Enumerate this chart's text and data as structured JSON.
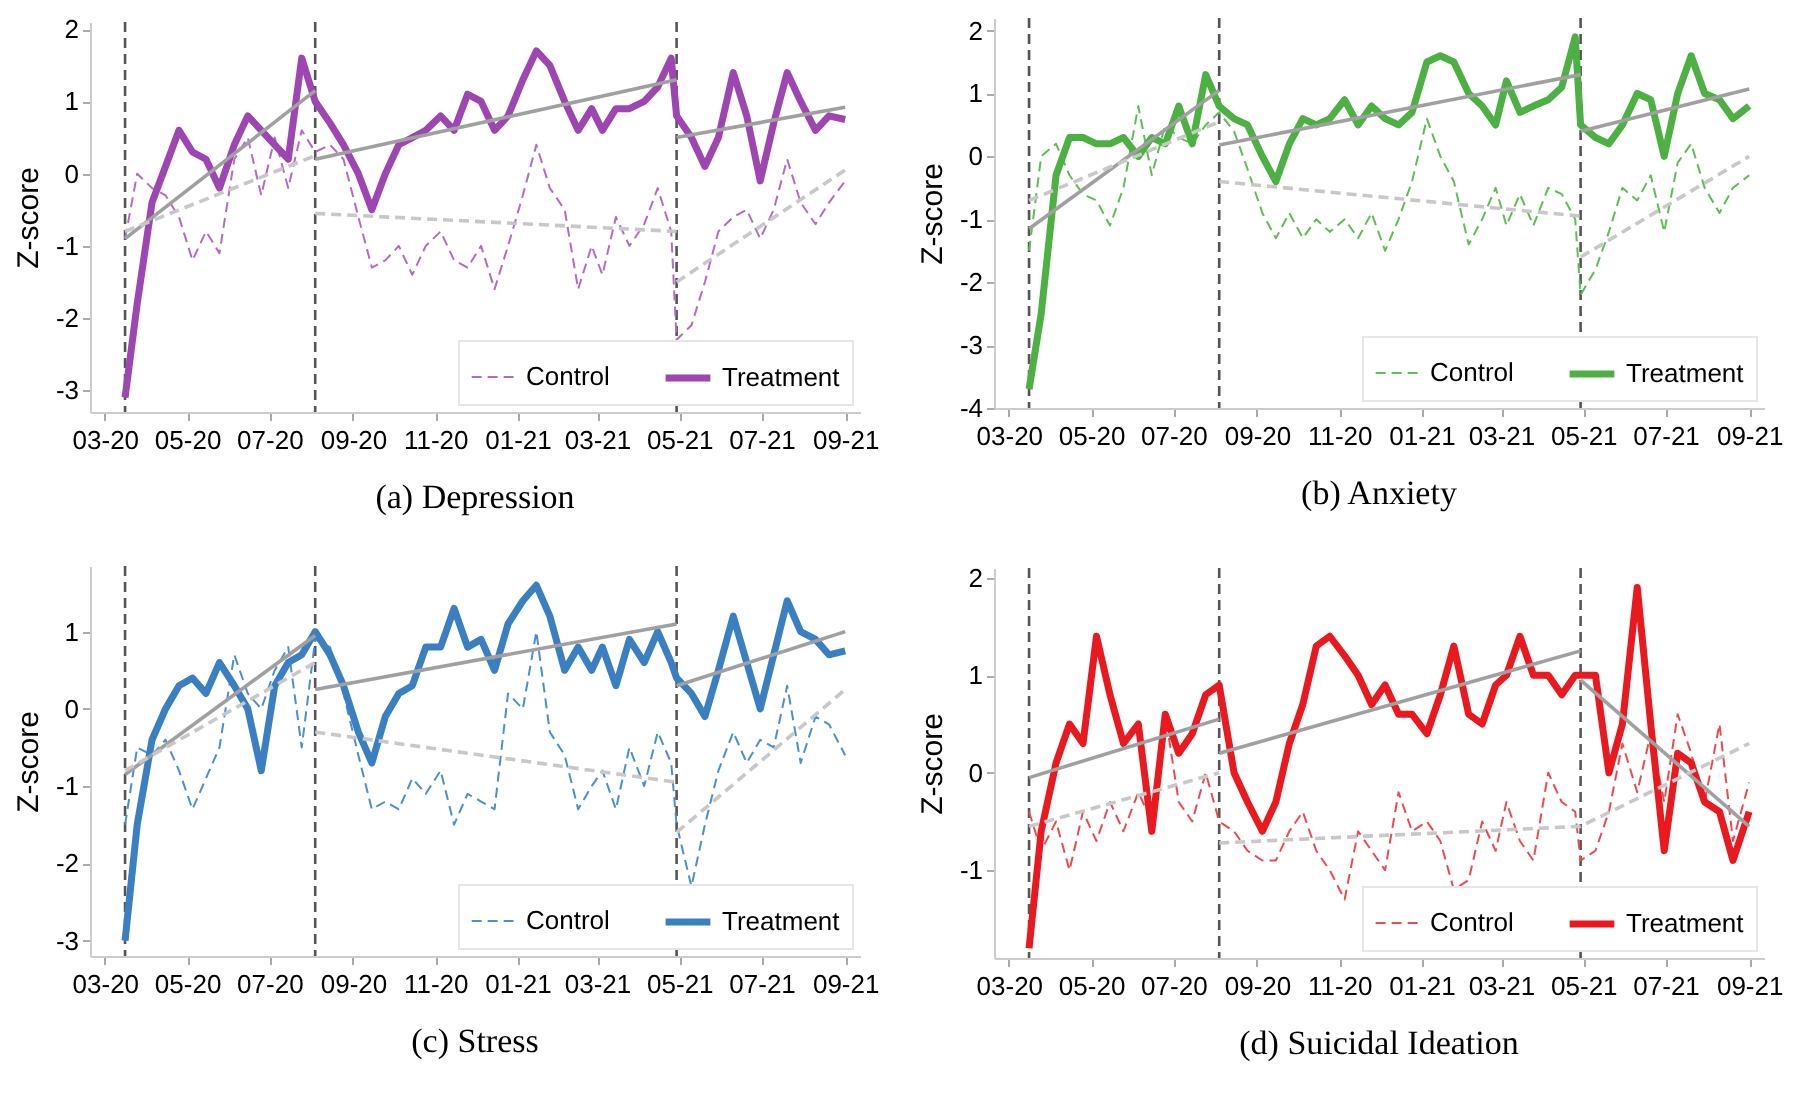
{
  "chart_data": [
    {
      "type": "line",
      "title": "(a) Depression",
      "ylabel": "Z-score",
      "legend": "bottom right",
      "x": [
        "2020-03-16",
        "2020-03-25",
        "2020-04-05",
        "2020-04-15",
        "2020-04-25",
        "2020-05-05",
        "2020-05-15",
        "2020-05-25",
        "2020-06-05",
        "2020-06-15",
        "2020-06-25",
        "2020-07-05",
        "2020-07-15",
        "2020-07-25",
        "2020-08-04",
        "2020-08-15",
        "2020-08-25",
        "2020-09-05",
        "2020-09-15",
        "2020-09-25",
        "2020-10-05",
        "2020-10-15",
        "2020-10-25",
        "2020-11-05",
        "2020-11-15",
        "2020-11-25",
        "2020-12-05",
        "2020-12-15",
        "2020-12-25",
        "2021-01-05",
        "2021-01-15",
        "2021-01-25",
        "2021-02-05",
        "2021-02-15",
        "2021-02-25",
        "2021-03-05",
        "2021-03-15",
        "2021-03-25",
        "2021-04-05",
        "2021-04-15",
        "2021-04-25",
        "2021-04-29",
        "2021-05-10",
        "2021-05-20",
        "2021-05-30",
        "2021-06-10",
        "2021-06-20",
        "2021-06-30",
        "2021-07-10",
        "2021-07-20",
        "2021-07-30",
        "2021-08-10",
        "2021-08-20",
        "2021-09-01"
      ],
      "xlim": [
        "2020-02-19",
        "2021-09-12"
      ],
      "xticks": [
        {
          "value": "2020-03-01",
          "label": "03-20"
        },
        {
          "value": "2020-05-01",
          "label": "05-20"
        },
        {
          "value": "2020-07-01",
          "label": "07-20"
        },
        {
          "value": "2020-09-01",
          "label": "09-20"
        },
        {
          "value": "2020-11-01",
          "label": "11-20"
        },
        {
          "value": "2021-01-01",
          "label": "01-21"
        },
        {
          "value": "2021-03-01",
          "label": "03-21"
        },
        {
          "value": "2021-05-01",
          "label": "05-21"
        },
        {
          "value": "2021-07-01",
          "label": "07-21"
        },
        {
          "value": "2021-09-01",
          "label": "09-21"
        }
      ],
      "ylim": [
        -3.3,
        2.1
      ],
      "yticks": [
        -3,
        -2,
        -1,
        0,
        1,
        2
      ],
      "ref_lines": [
        {
          "axis": "x",
          "value": "2020-03-16",
          "color": "#555555",
          "line_style": "dashed"
        },
        {
          "axis": "x",
          "value": "2020-08-04",
          "color": "#555555",
          "line_style": "dashed"
        },
        {
          "axis": "x",
          "value": "2021-04-29",
          "color": "#555555",
          "line_style": "dashed"
        }
      ],
      "series": [
        {
          "name": "Control",
          "color": "#b36cc4",
          "line_style": "dashed",
          "values": [
            -0.9,
            0.0,
            -0.2,
            -0.3,
            -0.6,
            -1.2,
            -0.8,
            -1.1,
            0.2,
            0.5,
            -0.3,
            0.5,
            -0.2,
            0.6,
            0.3,
            0.4,
            0.2,
            -0.6,
            -1.3,
            -1.2,
            -1.0,
            -1.4,
            -1.0,
            -0.8,
            -1.2,
            -1.3,
            -1.0,
            -1.6,
            -1.0,
            -0.3,
            0.4,
            -0.2,
            -0.5,
            -1.6,
            -1.0,
            -1.4,
            -0.6,
            -1.0,
            -0.7,
            -0.2,
            -0.8,
            -2.3,
            -2.1,
            -1.5,
            -0.8,
            -0.6,
            -0.5,
            -0.9,
            -0.5,
            0.2,
            -0.4,
            -0.7,
            -0.4,
            -0.1
          ]
        },
        {
          "name": "Treatment",
          "color": "#9d45b0",
          "line_style": "solid",
          "values": [
            -3.1,
            -1.8,
            -0.4,
            0.1,
            0.6,
            0.3,
            0.2,
            -0.2,
            0.4,
            0.8,
            0.6,
            0.4,
            0.2,
            1.6,
            1.0,
            0.7,
            0.4,
            0.0,
            -0.5,
            0.0,
            0.4,
            0.5,
            0.6,
            0.8,
            0.6,
            1.1,
            1.0,
            0.6,
            0.8,
            1.3,
            1.7,
            1.5,
            1.0,
            0.6,
            0.9,
            0.6,
            0.9,
            0.9,
            1.0,
            1.2,
            1.6,
            0.8,
            0.5,
            0.1,
            0.5,
            1.4,
            0.8,
            -0.1,
            0.7,
            1.4,
            1.0,
            0.6,
            0.8,
            0.75
          ]
        },
        {
          "type": "line",
          "color": "#a0a0a0",
          "line_style": "solid",
          "x": [
            "2020-03-16",
            "2020-08-04"
          ],
          "values": [
            -0.9,
            1.15
          ]
        },
        {
          "type": "line",
          "color": "#a0a0a0",
          "line_style": "solid",
          "x": [
            "2020-08-04",
            "2021-04-29"
          ],
          "values": [
            0.2,
            1.3
          ]
        },
        {
          "type": "line",
          "color": "#a0a0a0",
          "line_style": "solid",
          "x": [
            "2021-04-29",
            "2021-09-01"
          ],
          "values": [
            0.5,
            0.92
          ]
        },
        {
          "type": "line",
          "color": "#c8c8c8",
          "line_style": "dashed",
          "x": [
            "2020-03-16",
            "2020-08-04"
          ],
          "values": [
            -0.8,
            0.25
          ]
        },
        {
          "type": "line",
          "color": "#c8c8c8",
          "line_style": "dashed",
          "x": [
            "2020-08-04",
            "2021-04-29"
          ],
          "values": [
            -0.55,
            -0.8
          ]
        },
        {
          "type": "line",
          "color": "#c8c8c8",
          "line_style": "dashed",
          "x": [
            "2021-04-29",
            "2021-09-01"
          ],
          "values": [
            -1.5,
            0.05
          ]
        }
      ]
    },
    {
      "type": "line",
      "title": "(b) Anxiety",
      "ylabel": "Z-score",
      "legend": "bottom right",
      "x": [
        "2020-03-16",
        "2020-03-25",
        "2020-04-05",
        "2020-04-15",
        "2020-04-25",
        "2020-05-05",
        "2020-05-15",
        "2020-05-25",
        "2020-06-05",
        "2020-06-15",
        "2020-06-25",
        "2020-07-05",
        "2020-07-15",
        "2020-07-25",
        "2020-08-04",
        "2020-08-15",
        "2020-08-25",
        "2020-09-05",
        "2020-09-15",
        "2020-09-25",
        "2020-10-05",
        "2020-10-15",
        "2020-10-25",
        "2020-11-05",
        "2020-11-15",
        "2020-11-25",
        "2020-12-05",
        "2020-12-15",
        "2020-12-25",
        "2021-01-05",
        "2021-01-15",
        "2021-01-25",
        "2021-02-05",
        "2021-02-15",
        "2021-02-25",
        "2021-03-05",
        "2021-03-15",
        "2021-03-25",
        "2021-04-05",
        "2021-04-15",
        "2021-04-25",
        "2021-04-29",
        "2021-05-10",
        "2021-05-20",
        "2021-05-30",
        "2021-06-10",
        "2021-06-20",
        "2021-06-30",
        "2021-07-10",
        "2021-07-20",
        "2021-07-30",
        "2021-08-10",
        "2021-08-20",
        "2021-09-01"
      ],
      "xlim": [
        "2020-02-19",
        "2021-09-12"
      ],
      "xticks": [
        {
          "value": "2020-03-01",
          "label": "03-20"
        },
        {
          "value": "2020-05-01",
          "label": "05-20"
        },
        {
          "value": "2020-07-01",
          "label": "07-20"
        },
        {
          "value": "2020-09-01",
          "label": "09-20"
        },
        {
          "value": "2020-11-01",
          "label": "11-20"
        },
        {
          "value": "2021-01-01",
          "label": "01-21"
        },
        {
          "value": "2021-03-01",
          "label": "03-21"
        },
        {
          "value": "2021-05-01",
          "label": "05-21"
        },
        {
          "value": "2021-07-01",
          "label": "07-21"
        },
        {
          "value": "2021-09-01",
          "label": "09-21"
        }
      ],
      "ylim": [
        -4,
        2.2
      ],
      "yticks": [
        -4,
        -3,
        -2,
        -1,
        0,
        1,
        2
      ],
      "ref_lines": [
        {
          "axis": "x",
          "value": "2020-03-16",
          "color": "#555555",
          "line_style": "dashed"
        },
        {
          "axis": "x",
          "value": "2020-08-04",
          "color": "#555555",
          "line_style": "dashed"
        },
        {
          "axis": "x",
          "value": "2021-04-29",
          "color": "#555555",
          "line_style": "dashed"
        }
      ],
      "series": [
        {
          "name": "Control",
          "color": "#5cbf52",
          "line_style": "dashed",
          "values": [
            -1.5,
            0.0,
            0.2,
            -0.3,
            -0.6,
            -0.7,
            -1.1,
            -0.5,
            0.8,
            -0.3,
            0.5,
            0.3,
            0.2,
            0.5,
            0.7,
            0.4,
            -0.2,
            -0.9,
            -1.3,
            -0.9,
            -1.3,
            -1.0,
            -1.2,
            -1.0,
            -1.3,
            -0.9,
            -1.5,
            -1.0,
            -0.4,
            0.6,
            0.0,
            -0.4,
            -1.4,
            -1.0,
            -0.5,
            -1.1,
            -0.6,
            -1.1,
            -0.5,
            -0.6,
            -1.0,
            -2.2,
            -1.8,
            -1.2,
            -0.5,
            -0.7,
            -0.3,
            -1.2,
            -0.1,
            0.2,
            -0.5,
            -0.9,
            -0.5,
            -0.3
          ]
        },
        {
          "name": "Treatment",
          "color": "#4cb043",
          "line_style": "solid",
          "values": [
            -3.7,
            -2.5,
            -0.3,
            0.3,
            0.3,
            0.2,
            0.2,
            0.3,
            0.0,
            0.3,
            0.2,
            0.8,
            0.2,
            1.3,
            0.8,
            0.6,
            0.5,
            0.0,
            -0.4,
            0.2,
            0.6,
            0.5,
            0.6,
            0.9,
            0.5,
            0.8,
            0.6,
            0.5,
            0.7,
            1.5,
            1.6,
            1.5,
            1.0,
            0.8,
            0.5,
            1.2,
            0.7,
            0.8,
            0.9,
            1.1,
            1.9,
            0.5,
            0.3,
            0.2,
            0.5,
            1.0,
            0.9,
            0.0,
            1.0,
            1.6,
            1.0,
            0.9,
            0.6,
            0.8
          ]
        },
        {
          "type": "line",
          "color": "#a0a0a0",
          "line_style": "solid",
          "x": [
            "2020-03-16",
            "2020-08-04"
          ],
          "values": [
            -1.15,
            1.05
          ]
        },
        {
          "type": "line",
          "color": "#a0a0a0",
          "line_style": "solid",
          "x": [
            "2020-08-04",
            "2021-04-29"
          ],
          "values": [
            0.18,
            1.3
          ]
        },
        {
          "type": "line",
          "color": "#a0a0a0",
          "line_style": "solid",
          "x": [
            "2021-04-29",
            "2021-09-01"
          ],
          "values": [
            0.4,
            1.07
          ]
        },
        {
          "type": "line",
          "color": "#c8c8c8",
          "line_style": "dashed",
          "x": [
            "2020-03-16",
            "2020-08-04"
          ],
          "values": [
            -0.7,
            0.55
          ]
        },
        {
          "type": "line",
          "color": "#c8c8c8",
          "line_style": "dashed",
          "x": [
            "2020-08-04",
            "2021-04-29"
          ],
          "values": [
            -0.4,
            -0.95
          ]
        },
        {
          "type": "line",
          "color": "#c8c8c8",
          "line_style": "dashed",
          "x": [
            "2021-04-29",
            "2021-09-01"
          ],
          "values": [
            -1.6,
            0.0
          ]
        }
      ]
    },
    {
      "type": "line",
      "title": "(c) Stress",
      "ylabel": "Z-score",
      "legend": "bottom right",
      "x": [
        "2020-03-16",
        "2020-03-25",
        "2020-04-05",
        "2020-04-15",
        "2020-04-25",
        "2020-05-05",
        "2020-05-15",
        "2020-05-25",
        "2020-06-05",
        "2020-06-15",
        "2020-06-25",
        "2020-07-05",
        "2020-07-15",
        "2020-07-25",
        "2020-08-04",
        "2020-08-15",
        "2020-08-25",
        "2020-09-05",
        "2020-09-15",
        "2020-09-25",
        "2020-10-05",
        "2020-10-15",
        "2020-10-25",
        "2020-11-05",
        "2020-11-15",
        "2020-11-25",
        "2020-12-05",
        "2020-12-15",
        "2020-12-25",
        "2021-01-05",
        "2021-01-15",
        "2021-01-25",
        "2021-02-05",
        "2021-02-15",
        "2021-02-25",
        "2021-03-05",
        "2021-03-15",
        "2021-03-25",
        "2021-04-05",
        "2021-04-15",
        "2021-04-25",
        "2021-04-29",
        "2021-05-10",
        "2021-05-20",
        "2021-05-30",
        "2021-06-10",
        "2021-06-20",
        "2021-06-30",
        "2021-07-10",
        "2021-07-20",
        "2021-07-30",
        "2021-08-10",
        "2021-08-20",
        "2021-09-01"
      ],
      "xlim": [
        "2020-02-19",
        "2021-09-12"
      ],
      "xticks": [
        {
          "value": "2020-03-01",
          "label": "03-20"
        },
        {
          "value": "2020-05-01",
          "label": "05-20"
        },
        {
          "value": "2020-07-01",
          "label": "07-20"
        },
        {
          "value": "2020-09-01",
          "label": "09-20"
        },
        {
          "value": "2020-11-01",
          "label": "11-20"
        },
        {
          "value": "2021-01-01",
          "label": "01-21"
        },
        {
          "value": "2021-03-01",
          "label": "03-21"
        },
        {
          "value": "2021-05-01",
          "label": "05-21"
        },
        {
          "value": "2021-07-01",
          "label": "07-21"
        },
        {
          "value": "2021-09-01",
          "label": "09-21"
        }
      ],
      "ylim": [
        -3.2,
        1.85
      ],
      "yticks": [
        -3,
        -2,
        -1,
        0,
        1
      ],
      "ref_lines": [
        {
          "axis": "x",
          "value": "2020-03-16",
          "color": "#555555",
          "line_style": "dashed"
        },
        {
          "axis": "x",
          "value": "2020-08-04",
          "color": "#555555",
          "line_style": "dashed"
        },
        {
          "axis": "x",
          "value": "2021-04-29",
          "color": "#555555",
          "line_style": "dashed"
        }
      ],
      "series": [
        {
          "name": "Control",
          "color": "#4a8fd0",
          "line_style": "dashed",
          "values": [
            -1.5,
            -0.5,
            -0.6,
            -0.4,
            -0.8,
            -1.3,
            -0.9,
            -0.5,
            0.7,
            0.2,
            0.0,
            0.5,
            0.8,
            -0.5,
            0.9,
            0.8,
            0.2,
            -0.6,
            -1.3,
            -1.2,
            -1.3,
            -0.9,
            -1.1,
            -0.8,
            -1.5,
            -1.1,
            -1.2,
            -1.3,
            0.2,
            0.0,
            1.0,
            -0.3,
            -0.6,
            -1.3,
            -1.0,
            -0.8,
            -1.3,
            -0.5,
            -1.0,
            -0.3,
            -0.7,
            -1.5,
            -2.3,
            -1.5,
            -0.8,
            -0.3,
            -0.7,
            -0.4,
            -0.5,
            0.3,
            -0.7,
            -0.1,
            -0.2,
            -0.6
          ]
        },
        {
          "name": "Treatment",
          "color": "#3a7fc1",
          "line_style": "solid",
          "values": [
            -3.0,
            -1.5,
            -0.4,
            0.0,
            0.3,
            0.4,
            0.2,
            0.6,
            0.3,
            0.0,
            -0.8,
            0.3,
            0.6,
            0.7,
            1.0,
            0.7,
            0.3,
            -0.3,
            -0.7,
            -0.1,
            0.2,
            0.3,
            0.8,
            0.8,
            1.3,
            0.8,
            0.9,
            0.5,
            1.1,
            1.4,
            1.6,
            1.2,
            0.5,
            0.8,
            0.5,
            0.8,
            0.3,
            0.9,
            0.6,
            1.0,
            0.6,
            0.4,
            0.2,
            -0.1,
            0.5,
            1.2,
            0.6,
            0.0,
            0.7,
            1.4,
            1.0,
            0.9,
            0.7,
            0.75
          ]
        },
        {
          "type": "line",
          "color": "#a0a0a0",
          "line_style": "solid",
          "x": [
            "2020-03-16",
            "2020-08-04"
          ],
          "values": [
            -0.85,
            0.95
          ]
        },
        {
          "type": "line",
          "color": "#a0a0a0",
          "line_style": "solid",
          "x": [
            "2020-08-04",
            "2021-04-29"
          ],
          "values": [
            0.25,
            1.1
          ]
        },
        {
          "type": "line",
          "color": "#a0a0a0",
          "line_style": "solid",
          "x": [
            "2021-04-29",
            "2021-09-01"
          ],
          "values": [
            0.3,
            1.0
          ]
        },
        {
          "type": "line",
          "color": "#c8c8c8",
          "line_style": "dashed",
          "x": [
            "2020-03-16",
            "2020-08-04"
          ],
          "values": [
            -0.8,
            0.6
          ]
        },
        {
          "type": "line",
          "color": "#c8c8c8",
          "line_style": "dashed",
          "x": [
            "2020-08-04",
            "2021-04-29"
          ],
          "values": [
            -0.3,
            -0.95
          ]
        },
        {
          "type": "line",
          "color": "#c8c8c8",
          "line_style": "dashed",
          "x": [
            "2021-04-29",
            "2021-09-01"
          ],
          "values": [
            -1.6,
            0.25
          ]
        }
      ]
    },
    {
      "type": "line",
      "title": "(d) Suicidal Ideation",
      "ylabel": "Z-score",
      "legend": "bottom right",
      "x": [
        "2020-03-16",
        "2020-03-25",
        "2020-04-05",
        "2020-04-15",
        "2020-04-25",
        "2020-05-05",
        "2020-05-15",
        "2020-05-25",
        "2020-06-05",
        "2020-06-15",
        "2020-06-25",
        "2020-07-05",
        "2020-07-15",
        "2020-07-25",
        "2020-08-04",
        "2020-08-15",
        "2020-08-25",
        "2020-09-05",
        "2020-09-15",
        "2020-09-25",
        "2020-10-05",
        "2020-10-15",
        "2020-10-25",
        "2020-11-05",
        "2020-11-15",
        "2020-11-25",
        "2020-12-05",
        "2020-12-15",
        "2020-12-25",
        "2021-01-05",
        "2021-01-15",
        "2021-01-25",
        "2021-02-05",
        "2021-02-15",
        "2021-02-25",
        "2021-03-05",
        "2021-03-15",
        "2021-03-25",
        "2021-04-05",
        "2021-04-15",
        "2021-04-25",
        "2021-04-29",
        "2021-05-10",
        "2021-05-20",
        "2021-05-30",
        "2021-06-10",
        "2021-06-20",
        "2021-06-30",
        "2021-07-10",
        "2021-07-20",
        "2021-07-30",
        "2021-08-10",
        "2021-08-20",
        "2021-09-01"
      ],
      "xlim": [
        "2020-02-19",
        "2021-09-12"
      ],
      "xticks": [
        {
          "value": "2020-03-01",
          "label": "03-20"
        },
        {
          "value": "2020-05-01",
          "label": "05-20"
        },
        {
          "value": "2020-07-01",
          "label": "07-20"
        },
        {
          "value": "2020-09-01",
          "label": "09-20"
        },
        {
          "value": "2020-11-01",
          "label": "11-20"
        },
        {
          "value": "2021-01-01",
          "label": "01-21"
        },
        {
          "value": "2021-03-01",
          "label": "03-21"
        },
        {
          "value": "2021-05-01",
          "label": "05-21"
        },
        {
          "value": "2021-07-01",
          "label": "07-21"
        },
        {
          "value": "2021-09-01",
          "label": "09-21"
        }
      ],
      "ylim": [
        -1.9,
        2.1
      ],
      "yticks": [
        -1,
        0,
        1,
        2
      ],
      "ref_lines": [
        {
          "axis": "x",
          "value": "2020-03-16",
          "color": "#555555",
          "line_style": "dashed"
        },
        {
          "axis": "x",
          "value": "2020-08-04",
          "color": "#555555",
          "line_style": "dashed"
        },
        {
          "axis": "x",
          "value": "2021-04-29",
          "color": "#555555",
          "line_style": "dashed"
        }
      ],
      "series": [
        {
          "name": "Control",
          "color": "#ee4a4e",
          "line_style": "dashed",
          "values": [
            -0.4,
            -0.8,
            -0.5,
            -1.0,
            -0.4,
            -0.7,
            -0.3,
            -0.6,
            -0.2,
            -0.5,
            0.6,
            -0.3,
            -0.5,
            0.0,
            -0.5,
            -0.6,
            -0.8,
            -0.9,
            -0.9,
            -0.6,
            -0.4,
            -0.8,
            -1.0,
            -1.3,
            -0.6,
            -0.8,
            -1.0,
            -0.2,
            -0.6,
            -0.5,
            -0.7,
            -1.2,
            -1.1,
            -0.5,
            -0.8,
            -0.3,
            -0.7,
            -0.9,
            0.0,
            -0.3,
            -0.4,
            -0.9,
            -0.8,
            -0.4,
            0.3,
            -0.2,
            0.4,
            -0.3,
            0.6,
            0.2,
            -0.3,
            0.5,
            -0.7,
            -0.1
          ]
        },
        {
          "name": "Treatment",
          "color": "#e8191f",
          "line_style": "solid",
          "values": [
            -1.8,
            -0.6,
            0.1,
            0.5,
            0.3,
            1.4,
            0.8,
            0.3,
            0.5,
            -0.6,
            0.6,
            0.2,
            0.4,
            0.8,
            0.9,
            0.0,
            -0.3,
            -0.6,
            -0.3,
            0.3,
            0.7,
            1.3,
            1.4,
            1.2,
            1.0,
            0.7,
            0.9,
            0.6,
            0.6,
            0.4,
            0.8,
            1.3,
            0.6,
            0.5,
            0.9,
            1.0,
            1.4,
            1.0,
            1.0,
            0.8,
            1.0,
            1.0,
            1.0,
            0.0,
            0.5,
            1.9,
            0.5,
            -0.8,
            0.2,
            0.1,
            -0.3,
            -0.4,
            -0.9,
            -0.4
          ]
        },
        {
          "type": "line",
          "color": "#a0a0a0",
          "line_style": "solid",
          "x": [
            "2020-03-16",
            "2020-08-04"
          ],
          "values": [
            -0.05,
            0.55
          ]
        },
        {
          "type": "line",
          "color": "#a0a0a0",
          "line_style": "solid",
          "x": [
            "2020-08-04",
            "2021-04-29"
          ],
          "values": [
            0.2,
            1.25
          ]
        },
        {
          "type": "line",
          "color": "#a0a0a0",
          "line_style": "solid",
          "x": [
            "2021-04-29",
            "2021-09-01"
          ],
          "values": [
            0.95,
            -0.55
          ]
        },
        {
          "type": "line",
          "color": "#c8c8c8",
          "line_style": "dashed",
          "x": [
            "2020-03-16",
            "2020-08-04"
          ],
          "values": [
            -0.55,
            0.0
          ]
        },
        {
          "type": "line",
          "color": "#c8c8c8",
          "line_style": "dashed",
          "x": [
            "2020-08-04",
            "2021-04-29",
            "2021-09-01"
          ],
          "values": [
            -0.72,
            -0.55,
            0.3
          ]
        }
      ]
    }
  ]
}
